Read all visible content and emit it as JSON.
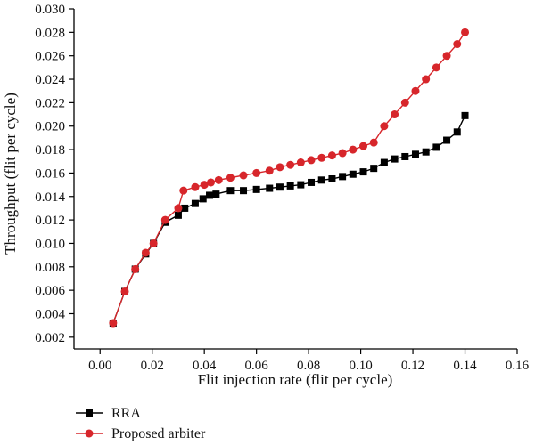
{
  "chart_data": {
    "type": "line",
    "title": "",
    "xlabel": "Flit injection rate (flit per cycle)",
    "ylabel": "Throughput (flit per cycle)",
    "xlim": [
      -0.01,
      0.16
    ],
    "ylim": [
      0.001,
      0.03
    ],
    "x_ticks": [
      0.0,
      0.02,
      0.04,
      0.06,
      0.08,
      0.1,
      0.12,
      0.14,
      0.16
    ],
    "x_tick_labels": [
      "0.00",
      "0.02",
      "0.04",
      "0.06",
      "0.08",
      "0.10",
      "0.12",
      "0.14",
      "0.16"
    ],
    "y_ticks": [
      0.002,
      0.004,
      0.006,
      0.008,
      0.01,
      0.012,
      0.014,
      0.016,
      0.018,
      0.02,
      0.022,
      0.024,
      0.026,
      0.028,
      0.03
    ],
    "y_tick_labels": [
      "0.002",
      "0.004",
      "0.006",
      "0.008",
      "0.010",
      "0.012",
      "0.014",
      "0.016",
      "0.018",
      "0.020",
      "0.022",
      "0.024",
      "0.026",
      "0.028",
      "0.030"
    ],
    "grid": false,
    "legend_position": "bottom-left",
    "series": [
      {
        "name": "RRA",
        "color": "#000000",
        "marker": "square",
        "points": [
          [
            0.005,
            0.0032
          ],
          [
            0.0095,
            0.0059
          ],
          [
            0.0135,
            0.0078
          ],
          [
            0.0175,
            0.0091
          ],
          [
            0.0205,
            0.01
          ],
          [
            0.025,
            0.0118
          ],
          [
            0.03,
            0.0124
          ],
          [
            0.0325,
            0.013
          ],
          [
            0.0365,
            0.0134
          ],
          [
            0.0395,
            0.0138
          ],
          [
            0.042,
            0.0141
          ],
          [
            0.0445,
            0.0142
          ],
          [
            0.05,
            0.0145
          ],
          [
            0.055,
            0.0145
          ],
          [
            0.06,
            0.0146
          ],
          [
            0.065,
            0.0147
          ],
          [
            0.069,
            0.0148
          ],
          [
            0.073,
            0.0149
          ],
          [
            0.077,
            0.015
          ],
          [
            0.081,
            0.0152
          ],
          [
            0.085,
            0.0154
          ],
          [
            0.089,
            0.0155
          ],
          [
            0.093,
            0.0157
          ],
          [
            0.097,
            0.0159
          ],
          [
            0.101,
            0.0161
          ],
          [
            0.105,
            0.0164
          ],
          [
            0.109,
            0.0169
          ],
          [
            0.113,
            0.0172
          ],
          [
            0.117,
            0.0174
          ],
          [
            0.121,
            0.0176
          ],
          [
            0.125,
            0.0178
          ],
          [
            0.129,
            0.0182
          ],
          [
            0.133,
            0.0188
          ],
          [
            0.137,
            0.0195
          ],
          [
            0.14,
            0.0209
          ]
        ]
      },
      {
        "name": "Proposed arbiter",
        "color": "#d7262b",
        "marker": "circle",
        "points": [
          [
            0.005,
            0.0032
          ],
          [
            0.0095,
            0.0059
          ],
          [
            0.0135,
            0.0078
          ],
          [
            0.0175,
            0.0092
          ],
          [
            0.0205,
            0.01
          ],
          [
            0.025,
            0.012
          ],
          [
            0.03,
            0.013
          ],
          [
            0.032,
            0.0145
          ],
          [
            0.0365,
            0.0148
          ],
          [
            0.04,
            0.015
          ],
          [
            0.0425,
            0.0152
          ],
          [
            0.0455,
            0.0154
          ],
          [
            0.05,
            0.0156
          ],
          [
            0.055,
            0.0158
          ],
          [
            0.06,
            0.016
          ],
          [
            0.065,
            0.0162
          ],
          [
            0.069,
            0.0165
          ],
          [
            0.073,
            0.0167
          ],
          [
            0.077,
            0.0169
          ],
          [
            0.081,
            0.0171
          ],
          [
            0.085,
            0.0173
          ],
          [
            0.089,
            0.0175
          ],
          [
            0.093,
            0.0177
          ],
          [
            0.097,
            0.018
          ],
          [
            0.101,
            0.0183
          ],
          [
            0.105,
            0.0186
          ],
          [
            0.109,
            0.02
          ],
          [
            0.113,
            0.021
          ],
          [
            0.117,
            0.022
          ],
          [
            0.121,
            0.023
          ],
          [
            0.125,
            0.024
          ],
          [
            0.129,
            0.025
          ],
          [
            0.133,
            0.026
          ],
          [
            0.137,
            0.027
          ],
          [
            0.14,
            0.028
          ]
        ]
      }
    ]
  }
}
